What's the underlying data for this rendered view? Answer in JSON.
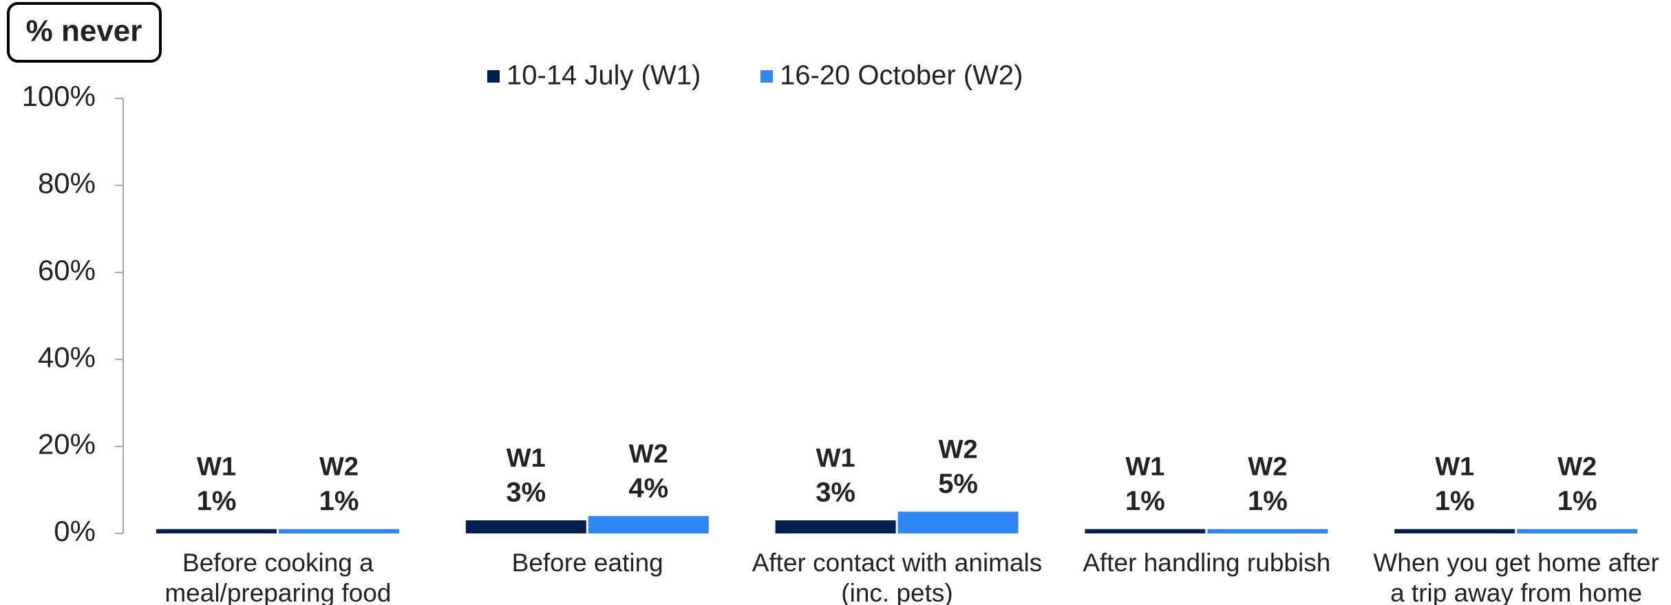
{
  "chart_data": {
    "type": "bar",
    "title": "% never",
    "categories": [
      [
        "Before cooking a",
        "meal/preparing food"
      ],
      [
        "Before eating"
      ],
      [
        "After contact with animals",
        "(inc. pets)"
      ],
      [
        "After handling rubbish"
      ],
      [
        "When you get home after",
        "a trip away from home"
      ]
    ],
    "series": [
      {
        "name": "10-14 July (W1)",
        "label": "W1",
        "color": "#002050",
        "values": [
          1,
          3,
          3,
          1,
          1
        ],
        "value_labels": [
          "1%",
          "3%",
          "3%",
          "1%",
          "1%"
        ]
      },
      {
        "name": "16-20 October (W2)",
        "label": "W2",
        "color": "#2e86f5",
        "values": [
          1,
          4,
          5,
          1,
          1
        ],
        "value_labels": [
          "1%",
          "4%",
          "5%",
          "1%",
          "1%"
        ]
      }
    ],
    "ylim": [
      0,
      100
    ],
    "yticks": [
      {
        "value": 0,
        "label": "0%"
      },
      {
        "value": 20,
        "label": "20%"
      },
      {
        "value": 40,
        "label": "40%"
      },
      {
        "value": 60,
        "label": "60%"
      },
      {
        "value": 80,
        "label": "80%"
      },
      {
        "value": 100,
        "label": "100%"
      }
    ],
    "legend": "top"
  }
}
